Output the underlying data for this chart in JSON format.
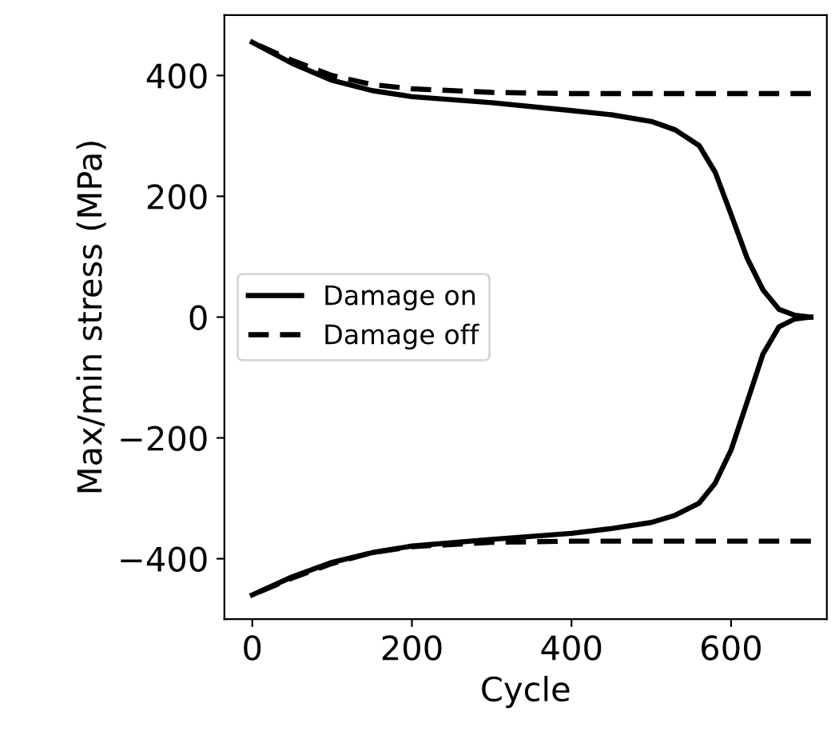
{
  "chart_data": {
    "type": "line",
    "xlabel": "Cycle",
    "ylabel": "Max/min stress (MPa)",
    "xlim": [
      -35,
      720
    ],
    "ylim": [
      -500,
      500
    ],
    "xticks": [
      0,
      200,
      400,
      600
    ],
    "yticks": [
      -400,
      -200,
      0,
      200,
      400
    ],
    "grid": false,
    "legend": "left",
    "marker": "none",
    "series": [
      {
        "name": "Damage on",
        "color": "#000000",
        "line_style": "solid",
        "x": [
          0,
          50,
          100,
          150,
          200,
          300,
          400,
          450,
          500,
          530,
          560,
          580,
          600,
          620,
          640,
          660,
          680,
          700
        ],
        "values": [
          455,
          420,
          392,
          375,
          365,
          355,
          342,
          335,
          324,
          310,
          284,
          240,
          170,
          98,
          45,
          13,
          3,
          0
        ]
      },
      {
        "color": "#000000",
        "line_style": "solid",
        "x": [
          0,
          50,
          100,
          150,
          200,
          300,
          400,
          450,
          500,
          530,
          560,
          580,
          600,
          620,
          640,
          660,
          680,
          700
        ],
        "values": [
          -460,
          -430,
          -406,
          -390,
          -379,
          -368,
          -358,
          -350,
          -340,
          -328,
          -308,
          -275,
          -220,
          -141,
          -61,
          -16,
          -3,
          0
        ]
      },
      {
        "name": "Damage off",
        "color": "#000000",
        "line_style": "dashed",
        "x": [
          0,
          50,
          100,
          150,
          200,
          300,
          400,
          500,
          600,
          700
        ],
        "values": [
          455,
          425,
          400,
          385,
          378,
          372,
          370,
          370,
          370,
          370
        ]
      },
      {
        "color": "#000000",
        "line_style": "dashed",
        "x": [
          0,
          50,
          100,
          150,
          200,
          300,
          400,
          500,
          600,
          700
        ],
        "values": [
          -460,
          -432,
          -408,
          -390,
          -380,
          -373,
          -371,
          -371,
          -371,
          -371
        ]
      }
    ]
  }
}
